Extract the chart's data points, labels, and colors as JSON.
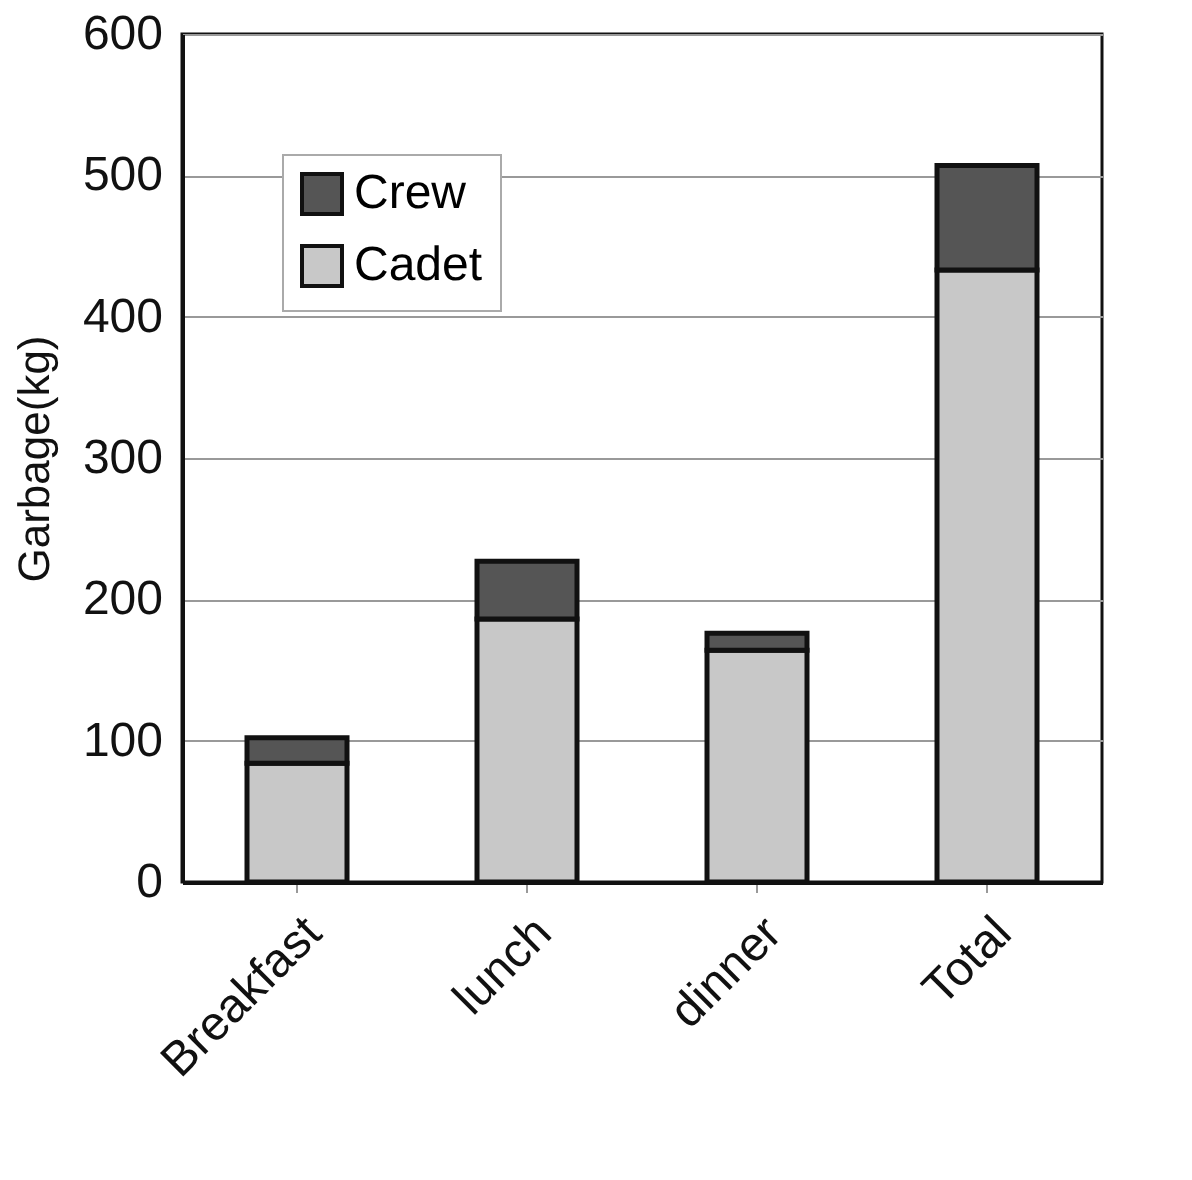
{
  "chart_data": {
    "type": "bar",
    "stacked": true,
    "ylabel": "Garbage(kg)",
    "categories": [
      "Breakfast",
      "lunch",
      "dinner",
      "Total"
    ],
    "series": [
      {
        "name": "Cadet",
        "color": "#c8c8c8",
        "values": [
          84,
          186,
          164,
          433
        ]
      },
      {
        "name": "Crew",
        "color": "#555555",
        "values": [
          18,
          41,
          12,
          74
        ]
      }
    ],
    "ylim": [
      0,
      600
    ],
    "yticks": [
      0,
      100,
      200,
      300,
      400,
      500,
      600
    ],
    "grid": "y",
    "legend": "top left"
  }
}
